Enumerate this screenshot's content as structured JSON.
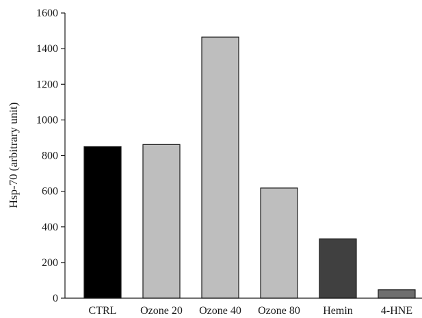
{
  "chart_data": {
    "type": "bar",
    "title": "",
    "xlabel": "",
    "ylabel": "Hsp-70 (arbitrary unit)",
    "categories": [
      "CTRL",
      "Ozone 20",
      "Ozone 40",
      "Ozone 80",
      "Hemin",
      "4-HNE"
    ],
    "values": [
      850,
      862,
      1465,
      618,
      333,
      47
    ],
    "colors": [
      "#000000",
      "#bebebe",
      "#bebebe",
      "#bebebe",
      "#404040",
      "#6e6e6e"
    ],
    "ylim": [
      0,
      1600
    ],
    "yticks": [
      0,
      200,
      400,
      600,
      800,
      1000,
      1200,
      1400,
      1600
    ],
    "grid": false,
    "legend": "none"
  }
}
